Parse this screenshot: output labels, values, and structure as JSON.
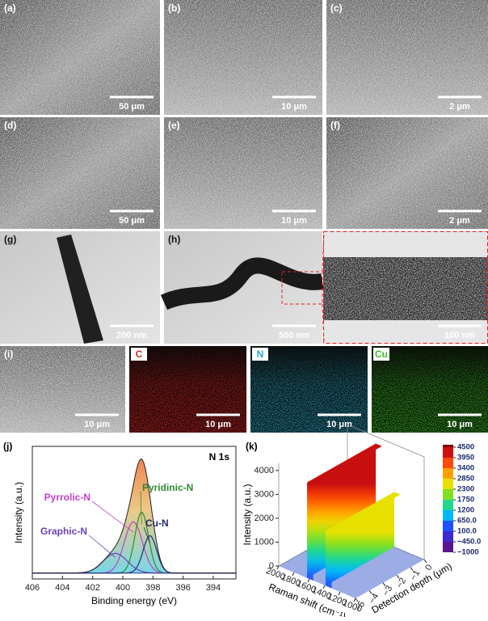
{
  "figure": {
    "panels": [
      {
        "label": "(a)",
        "scale_bar": "50 μm"
      },
      {
        "label": "(b)",
        "scale_bar": "10 μm"
      },
      {
        "label": "(c)",
        "scale_bar": "2 μm"
      },
      {
        "label": "(d)",
        "scale_bar": "50 μm"
      },
      {
        "label": "(e)",
        "scale_bar": "10 μm"
      },
      {
        "label": "(f)",
        "scale_bar": "2 μm"
      },
      {
        "label": "(g)",
        "scale_bar": "200 nm"
      },
      {
        "label": "(h)",
        "scale_bar": "500 nm"
      },
      {
        "label": "(i)",
        "scale_bar": "10 μm"
      }
    ],
    "h_inset": {
      "scale_bar": "100 nm"
    },
    "eds_maps": [
      {
        "element": "C",
        "color": "#e02020",
        "scale_bar": "10 μm"
      },
      {
        "element": "N",
        "color": "#2aa8c8",
        "scale_bar": "10 μm"
      },
      {
        "element": "Cu",
        "color": "#38c020",
        "scale_bar": "10 μm"
      }
    ]
  },
  "chart_data": [
    {
      "type": "line",
      "panel": "(j)",
      "title": "N 1s",
      "xlabel": "Binding energy (eV)",
      "ylabel": "Intensity (a.u.)",
      "xlim": [
        406,
        392.5
      ],
      "xticks": [
        406,
        404,
        402,
        400,
        398,
        396,
        394
      ],
      "ylim": [
        0,
        135
      ],
      "baseline": 6,
      "components": [
        {
          "name": "Pyrrolic-N",
          "color": "#c040c8",
          "center": 399.3,
          "height": 52,
          "width": 0.6
        },
        {
          "name": "Pyridinic-N",
          "color": "#2e8b2e",
          "center": 398.75,
          "height": 62,
          "width": 0.45
        },
        {
          "name": "Cu-N",
          "color": "#1f2a6e",
          "center": 398.2,
          "height": 38,
          "width": 0.45
        },
        {
          "name": "Graphic-N",
          "color": "#6a3fb8",
          "center": 400.5,
          "height": 20,
          "width": 0.8
        }
      ]
    },
    {
      "type": "surface3d",
      "panel": "(k)",
      "xlabel": "Raman shift (cm⁻¹)",
      "ylabel": "Detection depth (μm)",
      "zlabel": "Intensity (a.u.)",
      "xlim": [
        2000,
        1000
      ],
      "xticks": [
        2000,
        1800,
        1600,
        1400,
        1200,
        1000
      ],
      "ylim": [
        -5,
        0
      ],
      "yticks": [
        {
          "value": -5,
          "label": "−5"
        },
        {
          "value": -4,
          "label": "−4"
        },
        {
          "value": -3,
          "label": "−3"
        },
        {
          "value": -2,
          "label": "−2"
        },
        {
          "value": -1,
          "label": "−1"
        },
        0
      ],
      "zlim": [
        0,
        4300
      ],
      "zticks": [
        0,
        1000,
        2000,
        3000,
        4000
      ],
      "bands": [
        {
          "shift": 1590,
          "intensity": 4000
        },
        {
          "shift": 1350,
          "intensity": 2300
        }
      ],
      "colorbar": {
        "ticks": [
          {
            "value": -1000,
            "label": "−1000"
          },
          {
            "value": -450,
            "label": "−450.0"
          },
          {
            "value": 100,
            "label": "100.0"
          },
          {
            "value": 650,
            "label": "650.0"
          },
          1200,
          1750,
          2300,
          2850,
          3400,
          3950,
          4500
        ],
        "colors": [
          "#5a1690",
          "#3a2ad0",
          "#1e50ff",
          "#00b8ff",
          "#20d890",
          "#80e020",
          "#e8e000",
          "#ffa000",
          "#ff4800",
          "#d01010",
          "#7a0010"
        ]
      }
    }
  ]
}
